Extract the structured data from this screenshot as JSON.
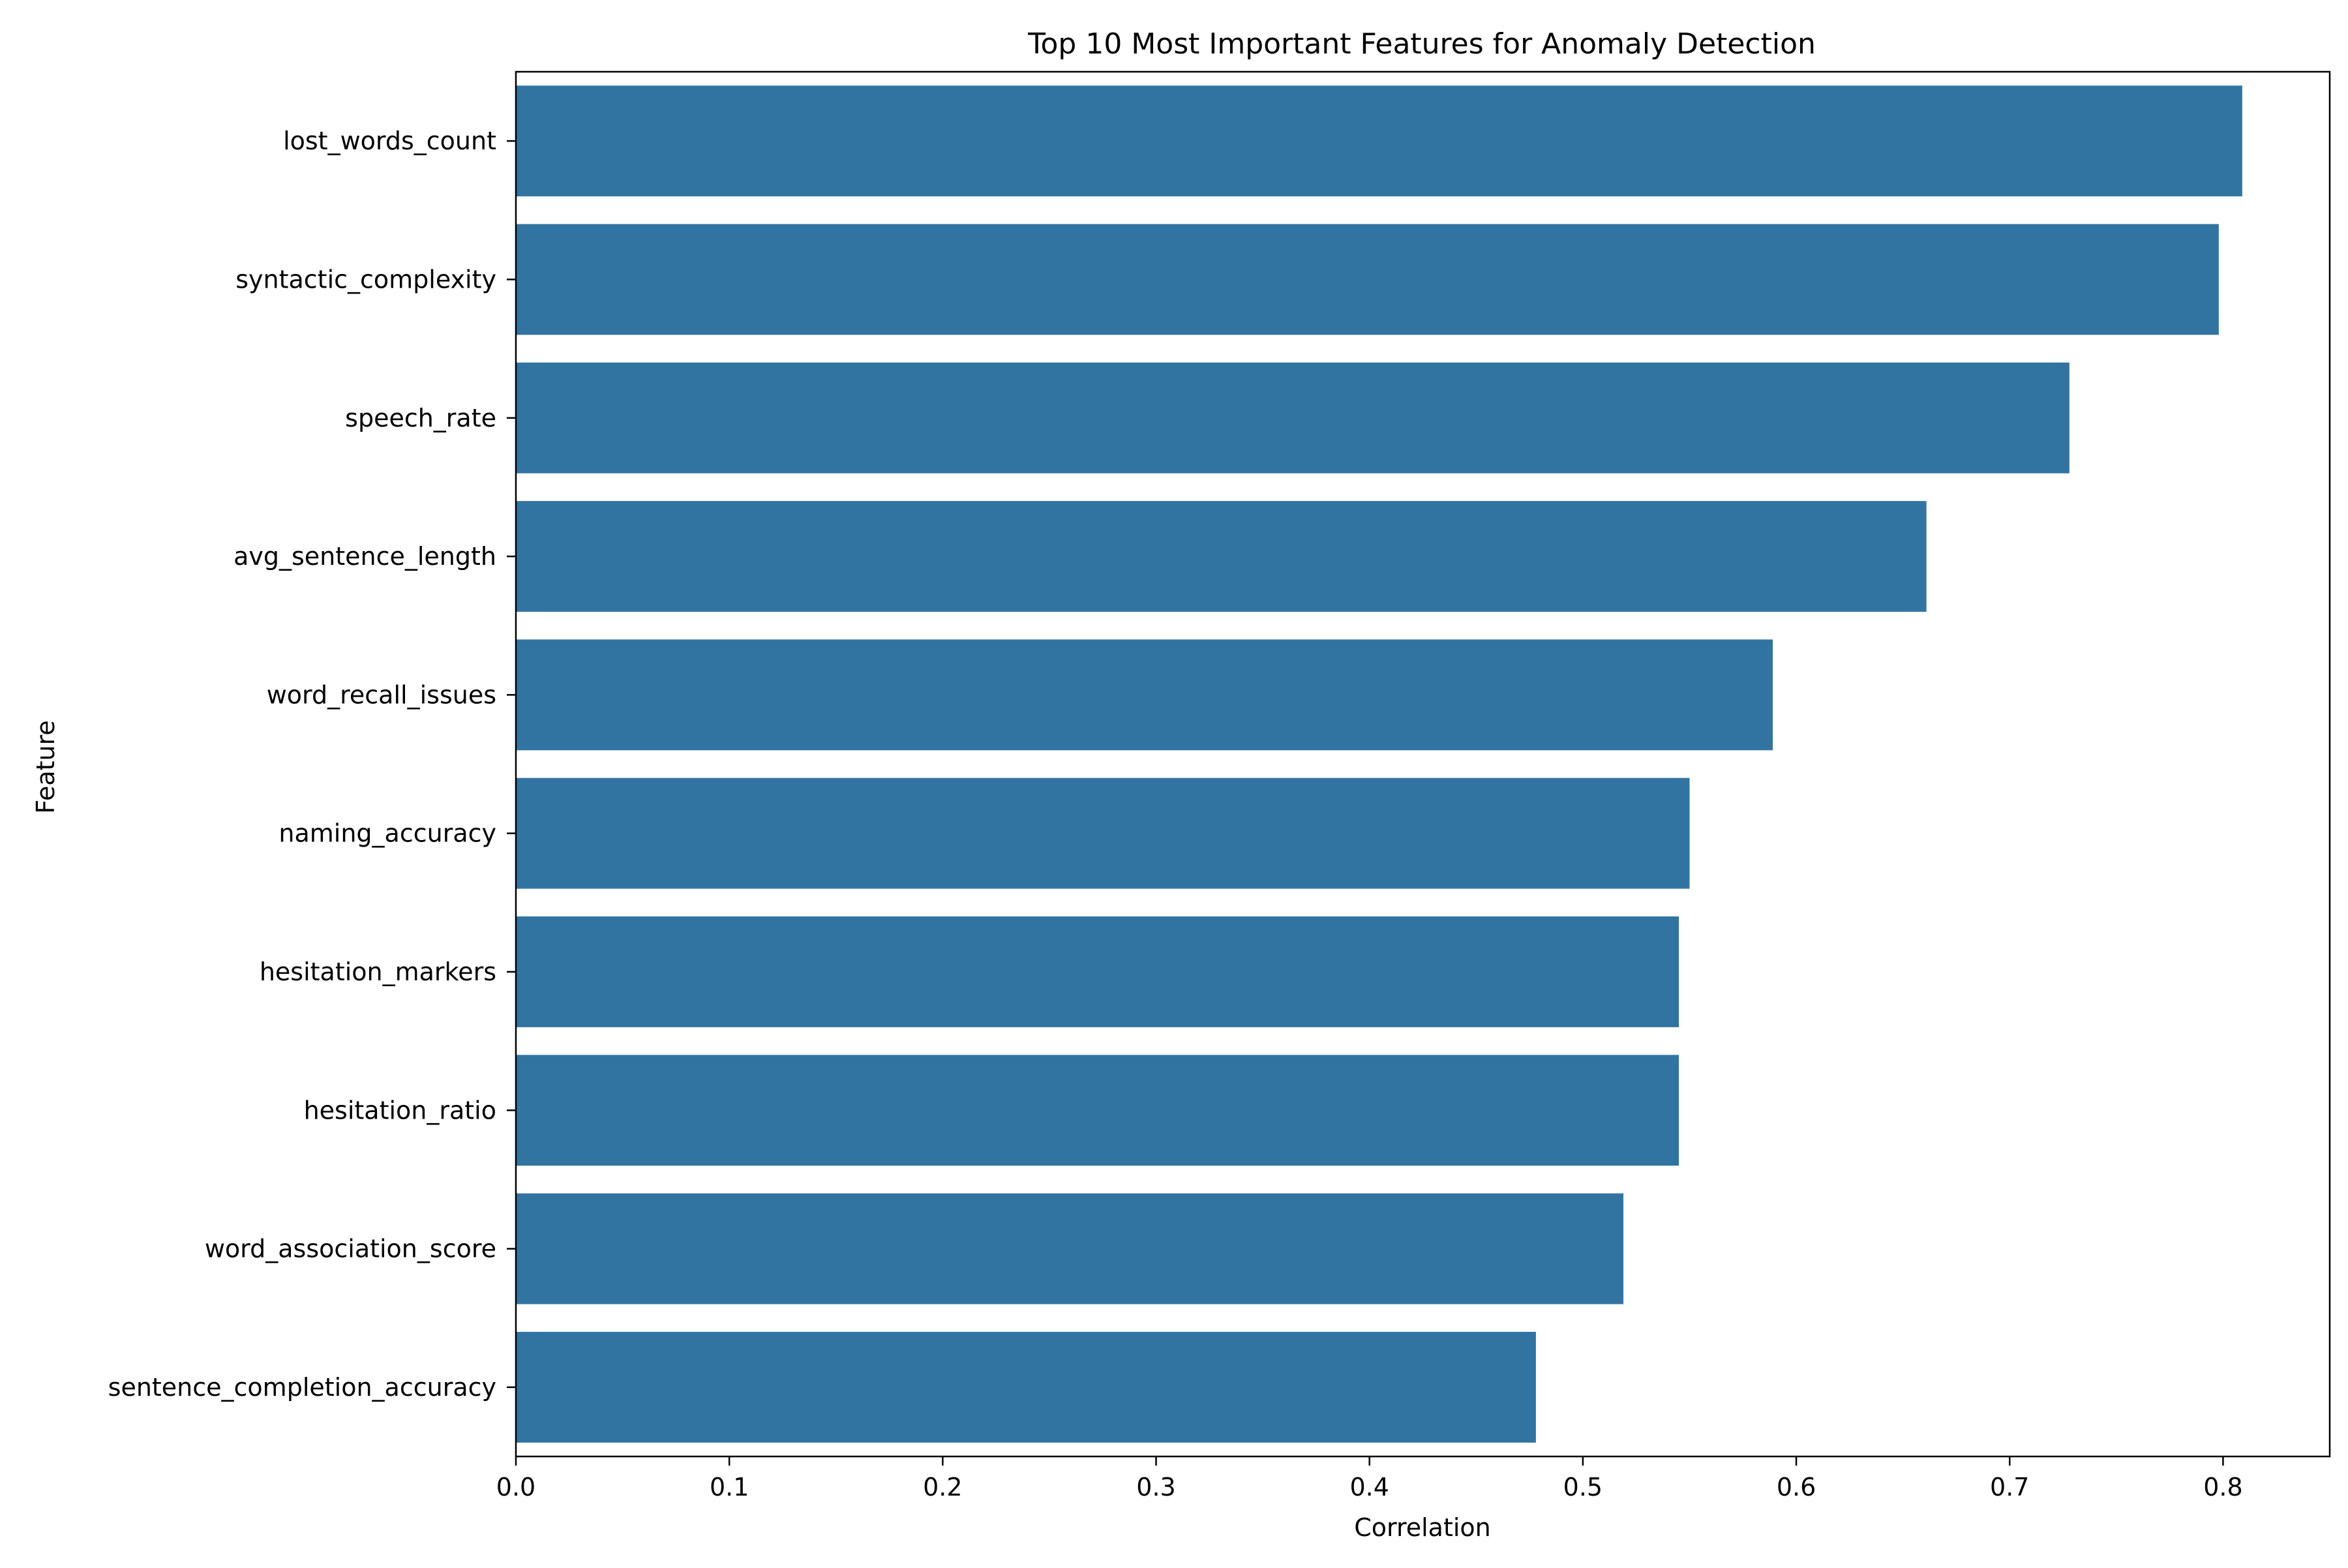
{
  "chart_data": {
    "type": "bar",
    "orientation": "horizontal",
    "title": "Top 10 Most Important Features for Anomaly Detection",
    "xlabel": "Correlation",
    "ylabel": "Feature",
    "categories": [
      "lost_words_count",
      "syntactic_complexity",
      "speech_rate",
      "avg_sentence_length",
      "word_recall_issues",
      "naming_accuracy",
      "hesitation_markers",
      "hesitation_ratio",
      "word_association_score",
      "sentence_completion_accuracy"
    ],
    "values": [
      0.809,
      0.798,
      0.728,
      0.661,
      0.589,
      0.55,
      0.545,
      0.545,
      0.519,
      0.478
    ],
    "xlim": [
      0.0,
      0.85
    ],
    "xticks": [
      0.0,
      0.1,
      0.2,
      0.3,
      0.4,
      0.5,
      0.6,
      0.7,
      0.8
    ],
    "xtick_labels": [
      "0.0",
      "0.1",
      "0.2",
      "0.3",
      "0.4",
      "0.5",
      "0.6",
      "0.7",
      "0.8"
    ],
    "bar_color": "#3274a1",
    "grid": false,
    "legend": "none"
  }
}
